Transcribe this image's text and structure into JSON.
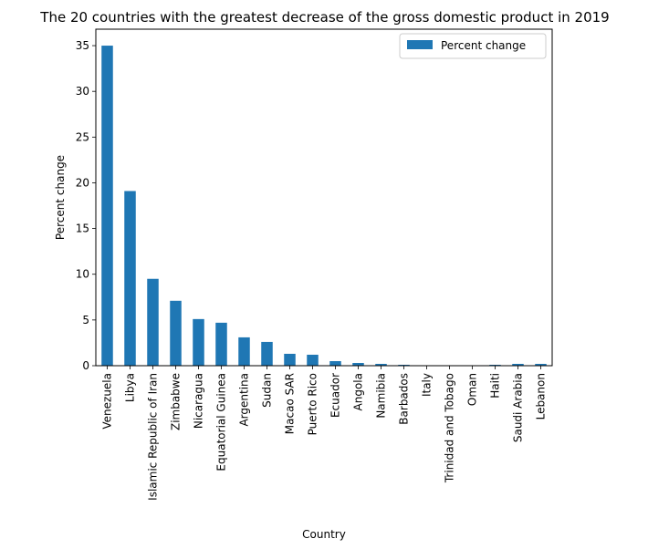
{
  "chart_data": {
    "type": "bar",
    "title": "The 20 countries with the greatest decrease of the gross domestic product in 2019",
    "xlabel": "Country",
    "ylabel": "Percent change",
    "ylim": [
      0,
      36.8
    ],
    "yticks": [
      0,
      5,
      10,
      15,
      20,
      25,
      30,
      35
    ],
    "grid": false,
    "legend": "top-right",
    "bar_color": "#1f77b4",
    "categories": [
      "Venezuela",
      "Libya",
      "Islamic Republic of Iran",
      "Zimbabwe",
      "Nicaragua",
      "Equatorial Guinea",
      "Argentina",
      "Sudan",
      "Macao SAR",
      "Puerto Rico",
      "Ecuador",
      "Angola",
      "Namibia",
      "Barbados",
      "Italy",
      "Trinidad and Tobago",
      "Oman",
      "Haiti",
      "Saudi Arabia",
      "Lebanon"
    ],
    "series": [
      {
        "name": "Percent change",
        "values": [
          35.0,
          19.1,
          9.5,
          7.1,
          5.1,
          4.7,
          3.1,
          2.6,
          1.3,
          1.2,
          0.5,
          0.3,
          0.2,
          0.1,
          0.03,
          0.03,
          0.02,
          0.1,
          0.2,
          0.2
        ]
      }
    ]
  }
}
